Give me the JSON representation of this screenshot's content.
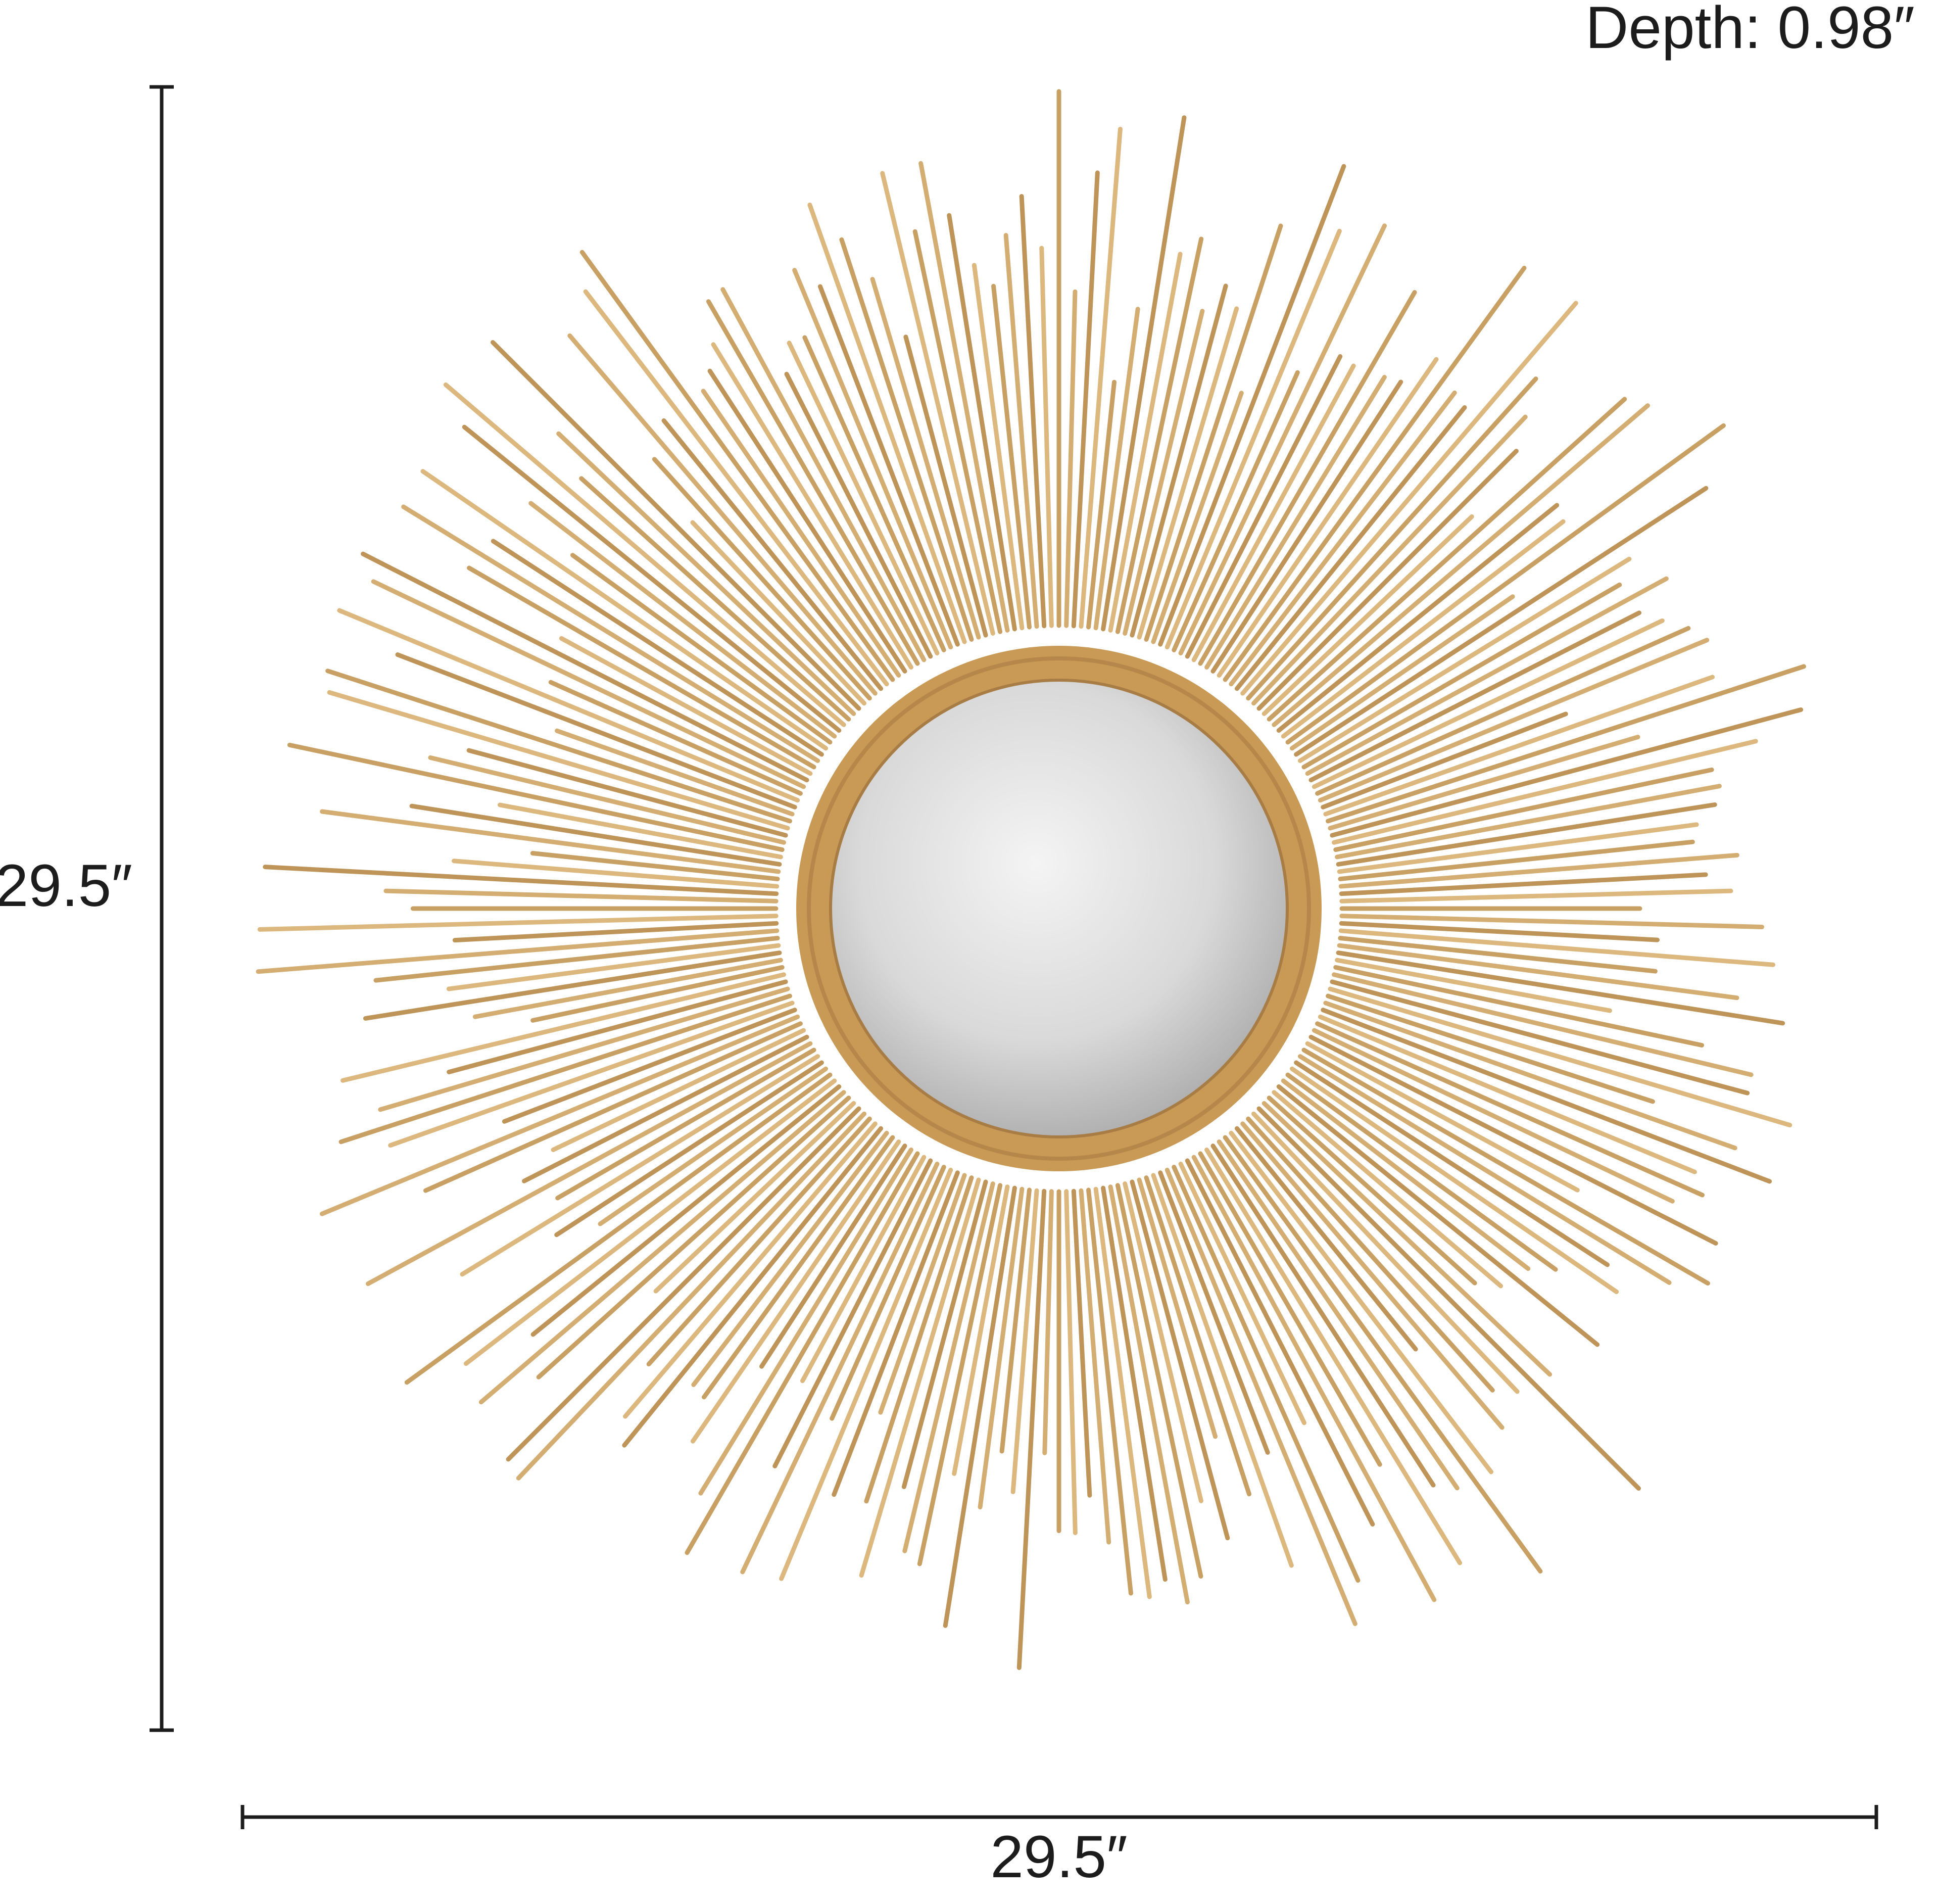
{
  "labels": {
    "depth": "Depth: 0.98″",
    "height": "29.5″",
    "width": "29.5″"
  }
}
